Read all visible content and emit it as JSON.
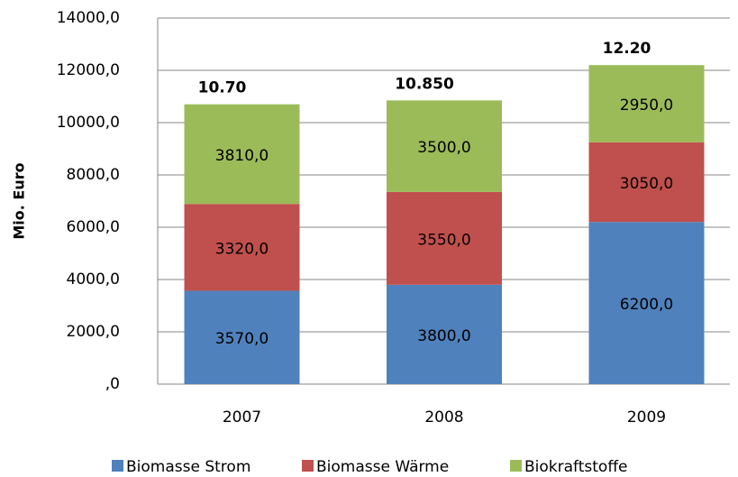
{
  "chart_data": {
    "type": "stacked_bar",
    "y_label": "Mio. Euro",
    "categories": [
      "2007",
      "2008",
      "2009"
    ],
    "series": [
      {
        "name": "Biomasse Strom",
        "color": "#4f81bd",
        "values": [
          3570,
          3800,
          6200
        ],
        "value_labels": [
          "3570,0",
          "3800,0",
          "6200,0"
        ]
      },
      {
        "name": "Biomasse Wärme",
        "color": "#c0504d",
        "values": [
          3320,
          3550,
          3050
        ],
        "value_labels": [
          "3320,0",
          "3550,0",
          "3050,0"
        ]
      },
      {
        "name": "Biokraftstoffe",
        "color": "#9bbb59",
        "values": [
          3810,
          3500,
          2950
        ],
        "value_labels": [
          "3810,0",
          "3500,0",
          "2950,0"
        ]
      }
    ],
    "totals": {
      "values": [
        10700,
        10850,
        12200
      ],
      "value_labels": [
        "10.70",
        "10.850",
        "12.20"
      ]
    },
    "ylim": [
      0,
      14000
    ],
    "yticks": [
      {
        "value": 0,
        "label": ",0"
      },
      {
        "value": 2000,
        "label": "2000,0"
      },
      {
        "value": 4000,
        "label": "4000,0"
      },
      {
        "value": 6000,
        "label": "6000,0"
      },
      {
        "value": 8000,
        "label": "8000,0"
      },
      {
        "value": 10000,
        "label": "10000,0"
      },
      {
        "value": 12000,
        "label": "12000,0"
      },
      {
        "value": 14000,
        "label": "14000,0"
      }
    ],
    "grid": true,
    "legend": "bottom"
  }
}
